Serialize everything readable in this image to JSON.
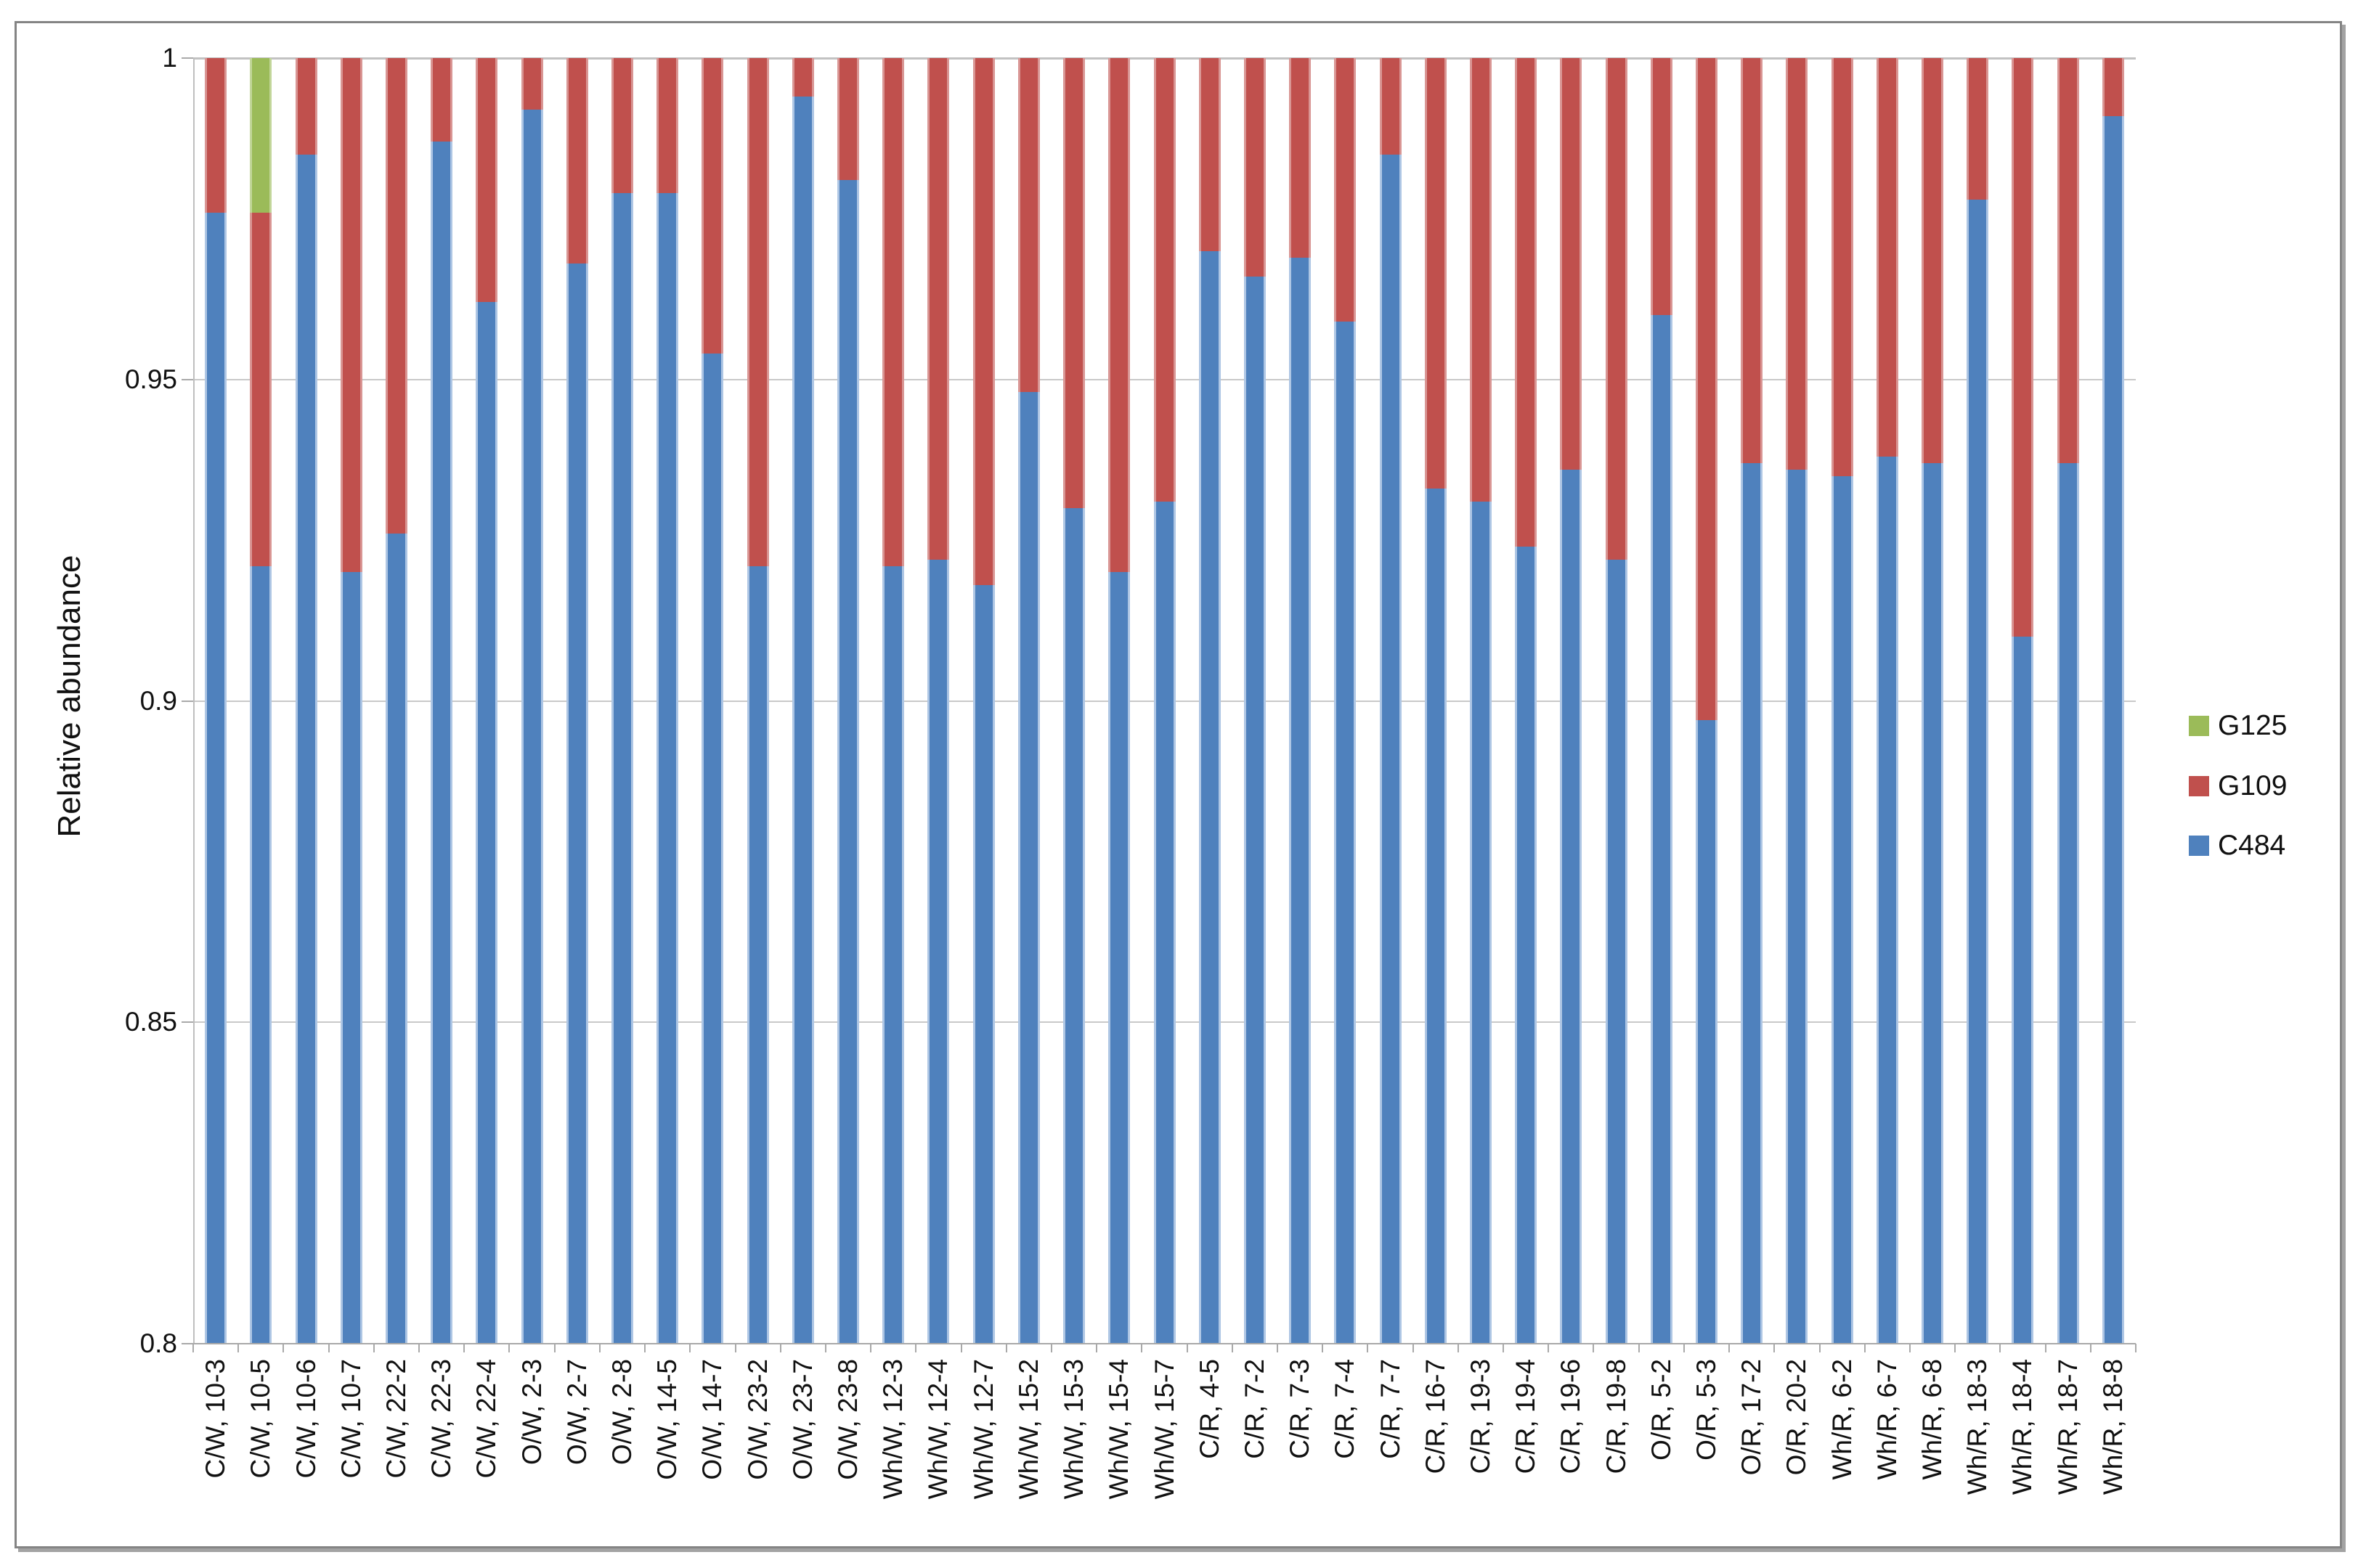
{
  "chart_data": {
    "type": "bar",
    "stacked": true,
    "title": "",
    "xlabel": "",
    "ylabel": "Relative abundance",
    "ylim": [
      0.8,
      1.0
    ],
    "yticks": [
      1,
      0.95,
      0.9,
      0.85,
      0.8
    ],
    "ytick_labels": [
      "1",
      "0.95",
      "0.9",
      "0.85",
      "0.8"
    ],
    "grid": "horizontal",
    "legend_position": "right",
    "legend_order": [
      "G125",
      "G109",
      "C484"
    ],
    "categories": [
      "C/W, 10-3",
      "C/W, 10-5",
      "C/W, 10-6",
      "C/W, 10-7",
      "C/W, 22-2",
      "C/W, 22-3",
      "C/W, 22-4",
      "O/W, 2-3",
      "O/W, 2-7",
      "O/W, 2-8",
      "O/W, 14-5",
      "O/W, 14-7",
      "O/W, 23-2",
      "O/W, 23-7",
      "O/W, 23-8",
      "Wh/W, 12-3",
      "Wh/W, 12-4",
      "Wh/W, 12-7",
      "Wh/W, 15-2",
      "Wh/W, 15-3",
      "Wh/W, 15-4",
      "Wh/W, 15-7",
      "C/R, 4-5",
      "C/R, 7-2",
      "C/R, 7-3",
      "C/R, 7-4",
      "C/R, 7-7",
      "C/R, 16-7",
      "C/R, 19-3",
      "C/R, 19-4",
      "C/R, 19-6",
      "C/R, 19-8",
      "O/R, 5-2",
      "O/R, 5-3",
      "O/R, 17-2",
      "O/R, 20-2",
      "Wh/R, 6-2",
      "Wh/R, 6-7",
      "Wh/R, 6-8",
      "Wh/R, 18-3",
      "Wh/R, 18-4",
      "Wh/R, 18-7",
      "Wh/R, 18-8"
    ],
    "series": [
      {
        "name": "C484",
        "color": "#4F81BD",
        "edge_color": "#AEC6E4",
        "values": [
          0.976,
          0.921,
          0.985,
          0.92,
          0.926,
          0.987,
          0.962,
          0.992,
          0.968,
          0.979,
          0.979,
          0.954,
          0.921,
          0.994,
          0.981,
          0.921,
          0.922,
          0.918,
          0.948,
          0.93,
          0.92,
          0.931,
          0.97,
          0.966,
          0.969,
          0.959,
          0.985,
          0.933,
          0.931,
          0.924,
          0.936,
          0.922,
          0.96,
          0.897,
          0.937,
          0.936,
          0.935,
          0.938,
          0.937,
          0.978,
          0.91,
          0.937,
          0.991
        ]
      },
      {
        "name": "G109",
        "color": "#C0504D",
        "edge_color": "#D99694",
        "values": [
          0.024,
          0.055,
          0.015,
          0.08,
          0.074,
          0.013,
          0.038,
          0.008,
          0.032,
          0.021,
          0.021,
          0.046,
          0.079,
          0.006,
          0.019,
          0.079,
          0.078,
          0.082,
          0.052,
          0.07,
          0.08,
          0.069,
          0.03,
          0.034,
          0.031,
          0.041,
          0.015,
          0.067,
          0.069,
          0.076,
          0.064,
          0.078,
          0.04,
          0.103,
          0.063,
          0.064,
          0.065,
          0.062,
          0.063,
          0.022,
          0.09,
          0.063,
          0.009
        ]
      },
      {
        "name": "G125",
        "color": "#9BBB59",
        "edge_color": "#C2D69A",
        "values": [
          0,
          0.024,
          0,
          0,
          0,
          0,
          0,
          0,
          0,
          0,
          0,
          0,
          0,
          0,
          0,
          0,
          0,
          0,
          0,
          0,
          0,
          0,
          0,
          0,
          0,
          0,
          0,
          0,
          0,
          0,
          0,
          0,
          0,
          0,
          0,
          0,
          0,
          0,
          0,
          0,
          0,
          0,
          0
        ]
      }
    ]
  }
}
